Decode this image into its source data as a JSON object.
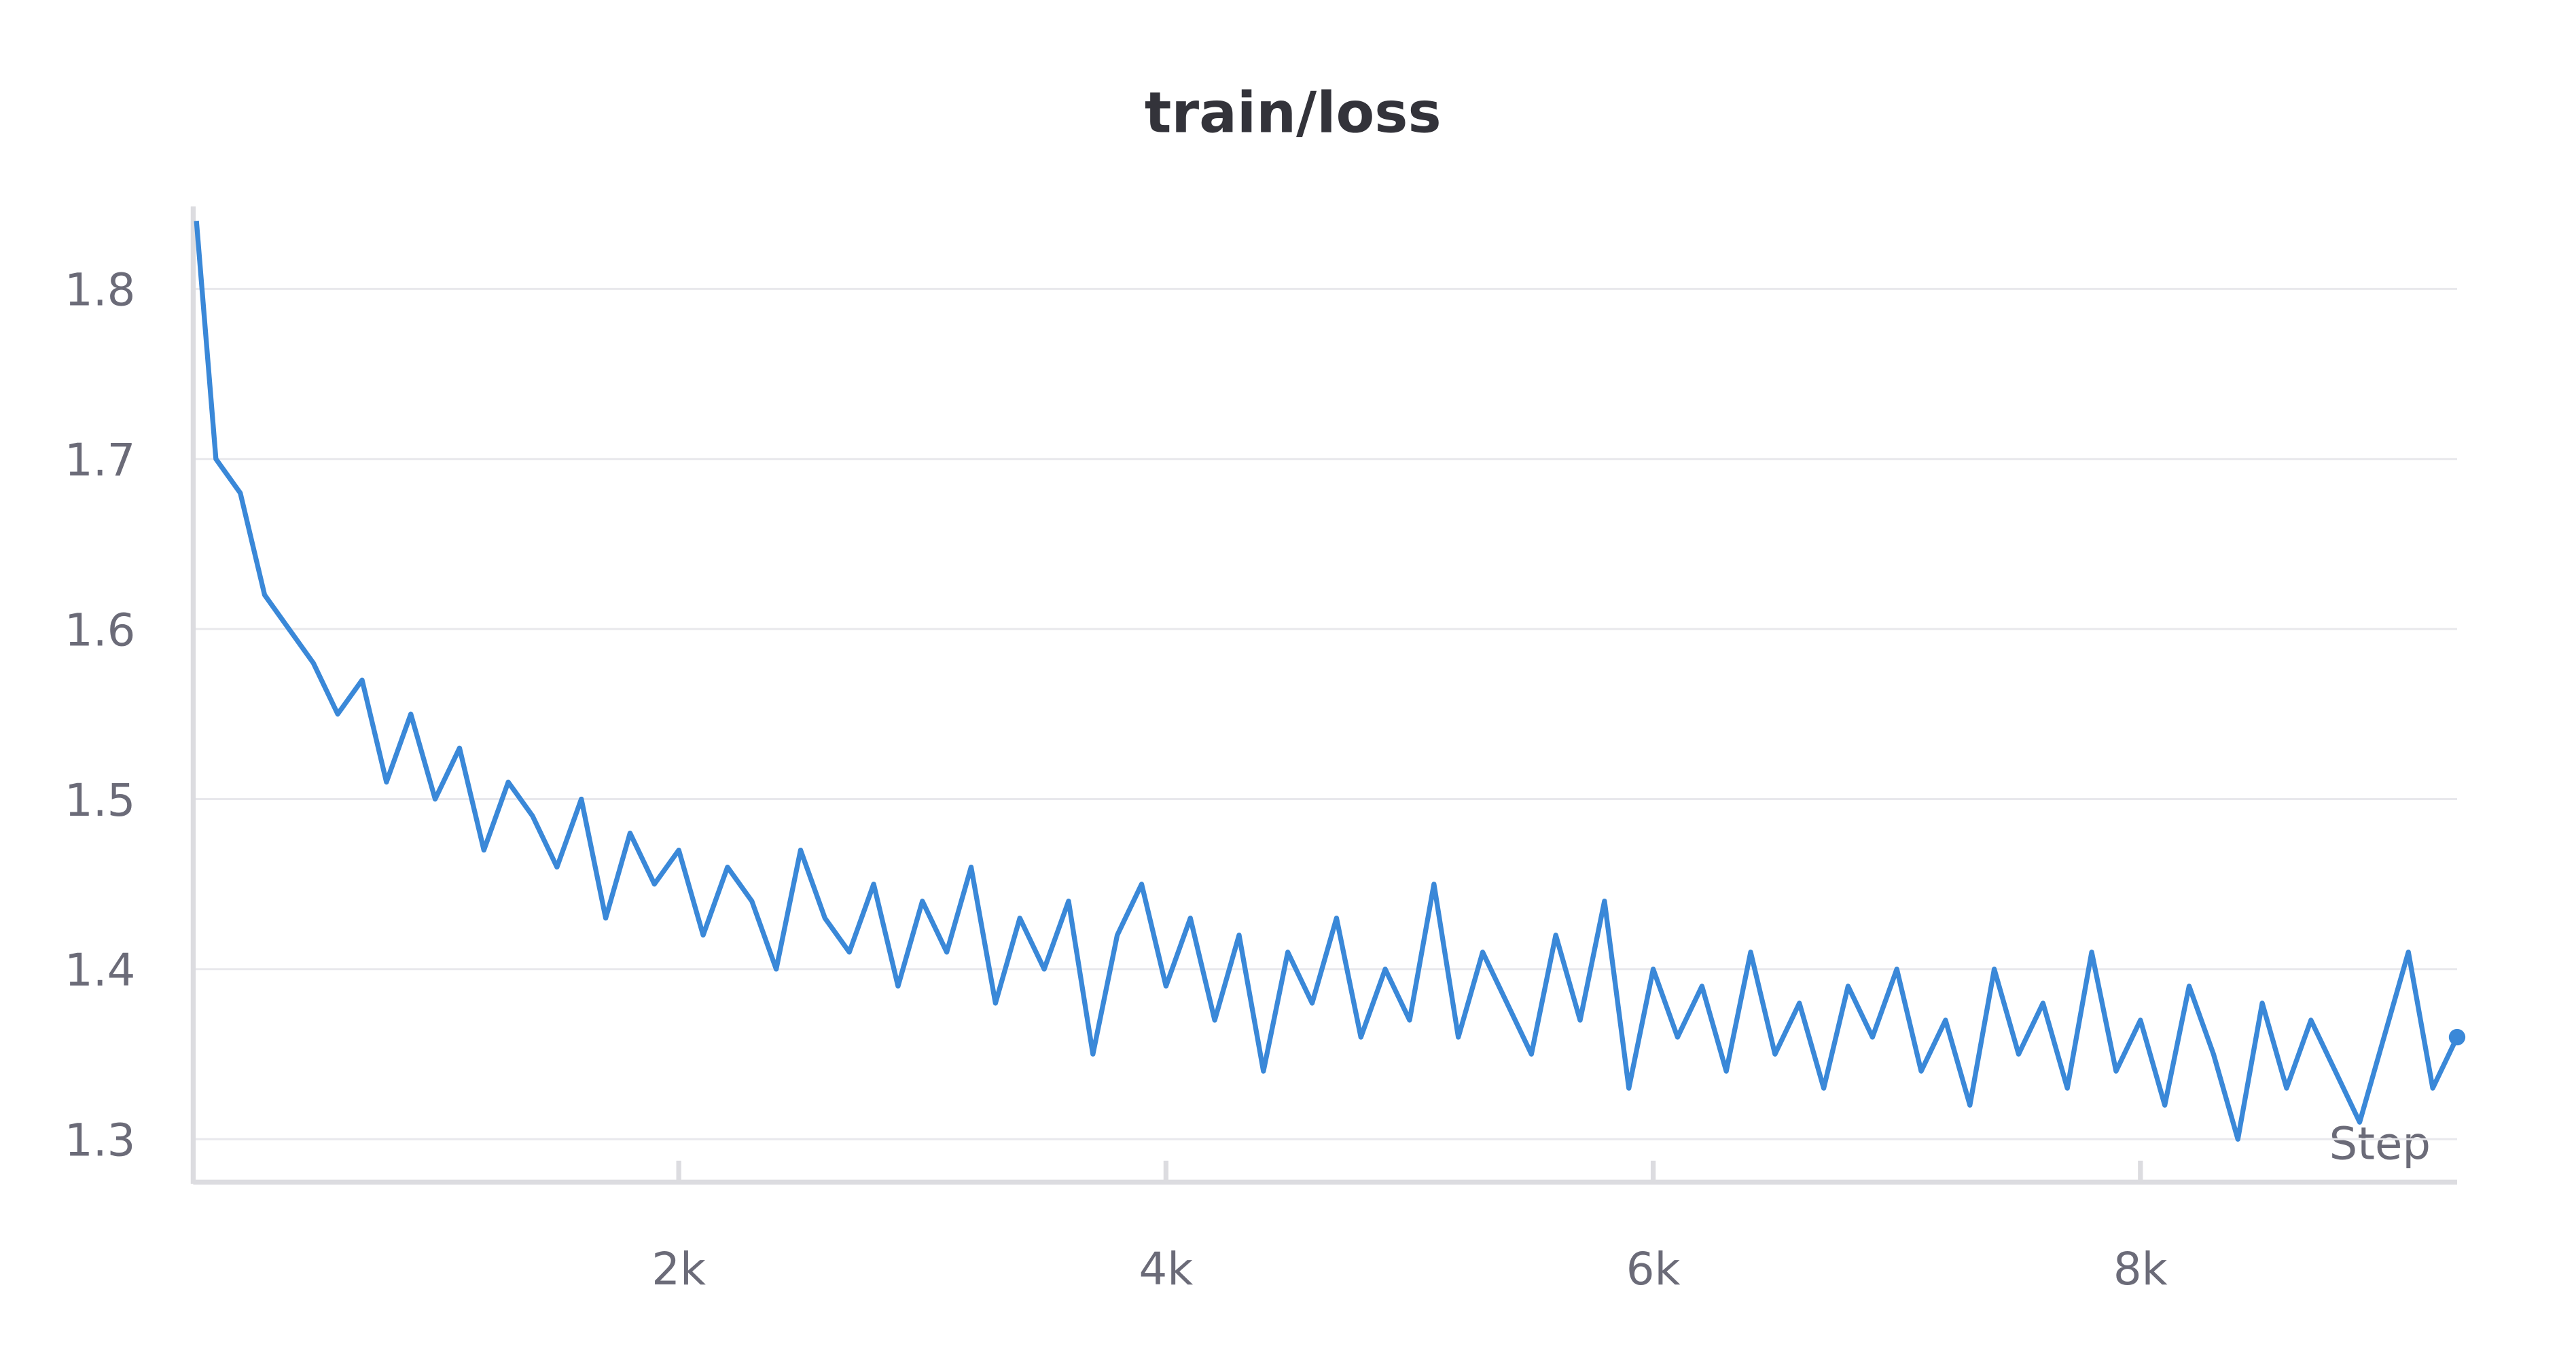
{
  "chart_data": {
    "type": "line",
    "title": "train/loss",
    "x_label": "Step",
    "x": [
      20,
      100,
      200,
      300,
      400,
      500,
      600,
      700,
      800,
      900,
      1000,
      1100,
      1200,
      1300,
      1400,
      1500,
      1600,
      1700,
      1800,
      1900,
      2000,
      2100,
      2200,
      2300,
      2400,
      2500,
      2600,
      2700,
      2800,
      2900,
      3000,
      3100,
      3200,
      3300,
      3400,
      3500,
      3600,
      3700,
      3800,
      3900,
      4000,
      4100,
      4200,
      4300,
      4400,
      4500,
      4600,
      4700,
      4800,
      4900,
      5000,
      5100,
      5200,
      5300,
      5400,
      5500,
      5600,
      5700,
      5800,
      5900,
      6000,
      6100,
      6200,
      6300,
      6400,
      6500,
      6600,
      6700,
      6800,
      6900,
      7000,
      7100,
      7200,
      7300,
      7400,
      7500,
      7600,
      7700,
      7800,
      7900,
      8000,
      8100,
      8200,
      8300,
      8400,
      8500,
      8600,
      8700,
      8800,
      8900,
      9000,
      9100,
      9200,
      9300
    ],
    "series": [
      {
        "name": "train/loss",
        "color": "#3a88d8",
        "values": [
          1.84,
          1.7,
          1.68,
          1.62,
          1.6,
          1.58,
          1.55,
          1.57,
          1.51,
          1.55,
          1.5,
          1.53,
          1.47,
          1.51,
          1.49,
          1.46,
          1.5,
          1.43,
          1.48,
          1.45,
          1.47,
          1.42,
          1.46,
          1.44,
          1.4,
          1.47,
          1.43,
          1.41,
          1.45,
          1.39,
          1.44,
          1.41,
          1.46,
          1.38,
          1.43,
          1.4,
          1.44,
          1.35,
          1.42,
          1.45,
          1.39,
          1.43,
          1.37,
          1.42,
          1.34,
          1.41,
          1.38,
          1.43,
          1.36,
          1.4,
          1.37,
          1.45,
          1.36,
          1.41,
          1.38,
          1.35,
          1.42,
          1.37,
          1.44,
          1.33,
          1.4,
          1.36,
          1.39,
          1.34,
          1.41,
          1.35,
          1.38,
          1.33,
          1.39,
          1.36,
          1.4,
          1.34,
          1.37,
          1.32,
          1.4,
          1.35,
          1.38,
          1.33,
          1.41,
          1.34,
          1.37,
          1.32,
          1.39,
          1.35,
          1.3,
          1.38,
          1.33,
          1.37,
          1.34,
          1.31,
          1.36,
          1.41,
          1.33,
          1.36
        ]
      }
    ],
    "xlim": [
      0,
      9300
    ],
    "ylim": [
      1.275,
      1.85
    ],
    "xticks": [
      {
        "value": 2000,
        "label": "2k"
      },
      {
        "value": 4000,
        "label": "4k"
      },
      {
        "value": 6000,
        "label": "6k"
      },
      {
        "value": 8000,
        "label": "8k"
      }
    ],
    "yticks": [
      1.3,
      1.4,
      1.5,
      1.6,
      1.7,
      1.8
    ],
    "grid": true
  }
}
